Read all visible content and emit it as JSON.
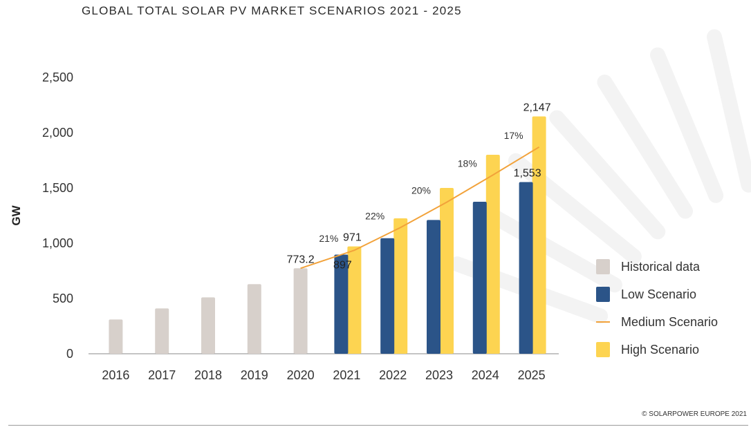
{
  "page": {
    "copyright": "© SOLARPOWER EUROPE 2021"
  },
  "chart_data": {
    "type": "bar",
    "title": "GLOBAL TOTAL SOLAR PV MARKET SCENARIOS 2021 - 2025",
    "ylabel": "GW",
    "xlabel": "",
    "ylim": [
      0,
      2500
    ],
    "yticks": [
      "0",
      "500",
      "1,000",
      "1,500",
      "2,000",
      "2,500"
    ],
    "ytick_values": [
      0,
      500,
      1000,
      1500,
      2000,
      2500
    ],
    "categories": [
      "2016",
      "2017",
      "2018",
      "2019",
      "2020",
      "2021",
      "2022",
      "2023",
      "2024",
      "2025"
    ],
    "grid": false,
    "legend_position": "right",
    "series": [
      {
        "name": "Historical data",
        "kind": "bar",
        "color": "#d7d0cb",
        "values": [
          310,
          410,
          510,
          630,
          773.2,
          null,
          null,
          null,
          null,
          null
        ]
      },
      {
        "name": "Low Scenario",
        "kind": "bar",
        "color": "#2b5488",
        "values": [
          null,
          null,
          null,
          null,
          null,
          897,
          1045,
          1210,
          1375,
          1553
        ]
      },
      {
        "name": "Medium Scenario",
        "kind": "line",
        "color": "#f2a23a",
        "values": [
          null,
          null,
          null,
          null,
          773.2,
          936,
          1142,
          1371,
          1617,
          1870
        ],
        "growth_labels": [
          null,
          null,
          null,
          null,
          null,
          "21%",
          "22%",
          "20%",
          "18%",
          "17%"
        ]
      },
      {
        "name": "High Scenario",
        "kind": "bar",
        "color": "#fdd451",
        "values": [
          null,
          null,
          null,
          null,
          null,
          971,
          1225,
          1500,
          1800,
          2147
        ]
      }
    ],
    "data_labels": [
      {
        "category": "2020",
        "value": 773.2,
        "text": "773.2"
      },
      {
        "category": "2021",
        "series": "High Scenario",
        "value": 971,
        "text": "971"
      },
      {
        "category": "2021",
        "series": "Low Scenario",
        "value": 897,
        "text": "897"
      },
      {
        "category": "2025",
        "series": "High Scenario",
        "value": 2147,
        "text": "2,147"
      },
      {
        "category": "2025",
        "series": "Low Scenario",
        "value": 1553,
        "text": "1,553"
      }
    ]
  }
}
